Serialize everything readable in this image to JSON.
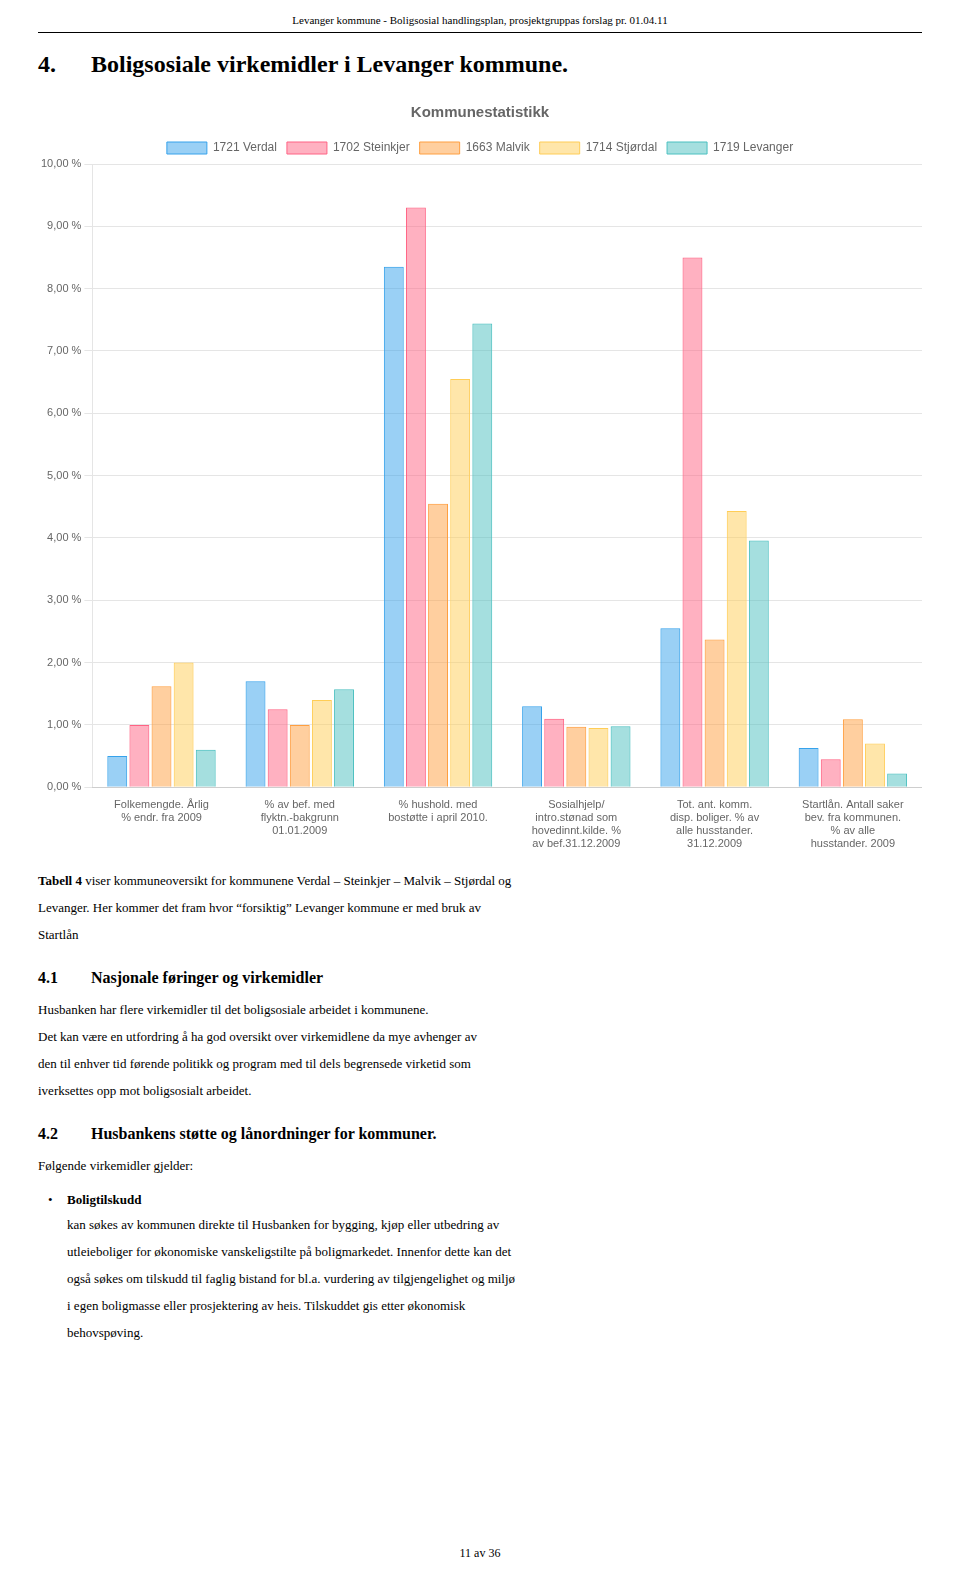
{
  "chart_data": {
    "type": "bar",
    "title": "Kommunestatistikk",
    "categories": [
      "Folkemengde. Årlig\n% endr. fra 2009",
      "% av bef. med\nflyktn.-bakgrunn\n01.01.2009",
      "% hushold. med\nbostøtte i april 2010.",
      "Sosialhjelp/\nintro.stønad som\nhovedinnt.kilde. %\nav bef.31.12.2009",
      "Tot. ant. komm.\ndisp. boliger. % av\nalle husstander.\n31.12.2009",
      "Startlån. Antall saker\nbev. fra kommunen.\n% av alle\nhusstander. 2009"
    ],
    "series": [
      {
        "name": "1721 Verdal",
        "values": [
          0.5,
          1.7,
          8.35,
          1.3,
          2.55,
          0.63
        ]
      },
      {
        "name": "1702 Steinkjer",
        "values": [
          1.0,
          1.25,
          9.3,
          1.1,
          8.5,
          0.45
        ]
      },
      {
        "name": "1663 Malvik",
        "values": [
          1.62,
          1.0,
          4.55,
          0.97,
          2.37,
          1.09
        ]
      },
      {
        "name": "1714 Stjørdal",
        "values": [
          2.0,
          1.4,
          6.55,
          0.95,
          4.43,
          0.7
        ]
      },
      {
        "name": "1719 Levanger",
        "values": [
          0.6,
          1.57,
          7.44,
          0.98,
          3.96,
          0.22
        ]
      }
    ],
    "ylim": [
      0,
      10
    ],
    "yticks": [
      {
        "value": 0,
        "label": "0,00 %"
      },
      {
        "value": 1,
        "label": "1,00 %"
      },
      {
        "value": 2,
        "label": "2,00 %"
      },
      {
        "value": 3,
        "label": "3,00 %"
      },
      {
        "value": 4,
        "label": "4,00 %"
      },
      {
        "value": 5,
        "label": "5,00 %"
      },
      {
        "value": 6,
        "label": "6,00 %"
      },
      {
        "value": 7,
        "label": "7,00 %"
      },
      {
        "value": 8,
        "label": "8,00 %"
      },
      {
        "value": 9,
        "label": "9,00 %"
      },
      {
        "value": 10,
        "label": "10,00 %"
      }
    ],
    "grid": true,
    "legend": "top",
    "annotations": [
      "Levanger kommune - Boligsosial handlingsplan, prosjektgruppas forslag pr. 01.04.11",
      "4.",
      "Boligsosiale virkemidler i Levanger kommune.",
      "Tabell 4",
      "viser kommuneoversikt for kommunene Verdal – Steinkjer – Malvik – Stjørdal og",
      "Levanger. Her kommer det fram hvor “forsiktig” Levanger kommune er med bruk av",
      "Startlån",
      "4.1",
      "Nasjonale føringer og virkemidler",
      "Husbanken har flere virkemidler til det boligsosiale arbeidet i kommunene.",
      "Det kan være en utfordring å ha god oversikt over virkemidlene da mye avhenger av",
      "den til enhver tid førende politikk og program med til dels begrensede virketid som",
      "iverksettes opp mot boligsosialt arbeidet.",
      "4.2",
      "Husbankens støtte og lånordninger for kommuner.",
      "Følgende virkemidler gjelder:",
      "•",
      "Boligtilskudd",
      "kan søkes av kommunen direkte til Husbanken for bygging, kjøp eller utbedring av",
      "utleieboliger for økonomiske vanskeligstilte på boligmarkedet. Innenfor dette kan det",
      "også søkes om tilskudd til faglig bistand for bl.a. vurdering av tilgjengelighet og miljø",
      "i egen boligmasse eller prosjektering av heis. Tilskuddet gis etter økonomisk",
      "behovspøving.",
      "11 av 36"
    ]
  }
}
